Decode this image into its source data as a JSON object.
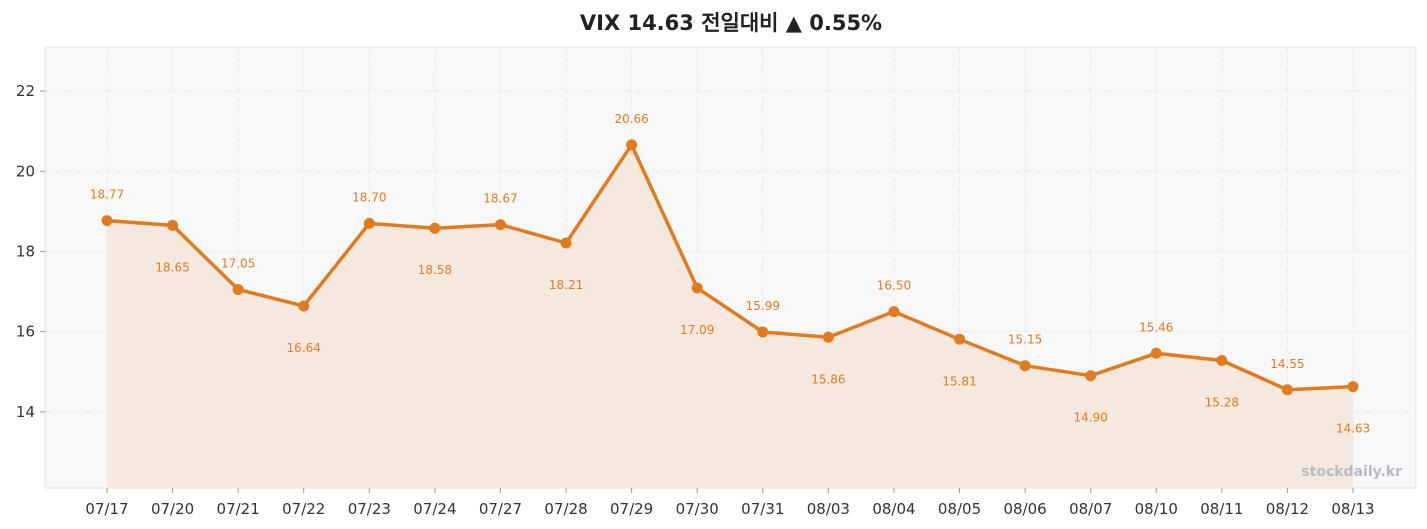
{
  "chart_data": {
    "type": "line",
    "title": "VIX 14.63 전일대비 ▲ 0.55%",
    "categories": [
      "07/17",
      "07/20",
      "07/21",
      "07/22",
      "07/23",
      "07/24",
      "07/27",
      "07/28",
      "07/29",
      "07/30",
      "07/31",
      "08/03",
      "08/04",
      "08/05",
      "08/06",
      "08/07",
      "08/10",
      "08/11",
      "08/12",
      "08/13"
    ],
    "values": [
      18.77,
      18.65,
      17.05,
      16.64,
      18.7,
      18.58,
      18.67,
      18.21,
      20.66,
      17.09,
      15.99,
      15.86,
      16.5,
      15.81,
      15.15,
      14.9,
      15.46,
      15.28,
      14.55,
      14.63
    ],
    "value_labels": [
      "18.77",
      "18.65",
      "17.05",
      "16.64",
      "18.70",
      "18.58",
      "18.67",
      "18.21",
      "20.66",
      "17.09",
      "15.99",
      "15.86",
      "16.50",
      "15.81",
      "15.15",
      "14.90",
      "15.46",
      "15.28",
      "14.55",
      "14.63"
    ],
    "ylim": [
      12.1,
      23.1
    ],
    "yticks": [
      14,
      16,
      18,
      20,
      22
    ],
    "ytick_labels": [
      "14",
      "16",
      "18",
      "20",
      "22"
    ],
    "grid": true,
    "area_fill": true,
    "colors": {
      "line": "#e07b1f",
      "area": "#f5e9df",
      "plot_bg": "#f7f8fa",
      "grid": "#e6e8ec"
    }
  },
  "watermark": "stockdaily.kr"
}
